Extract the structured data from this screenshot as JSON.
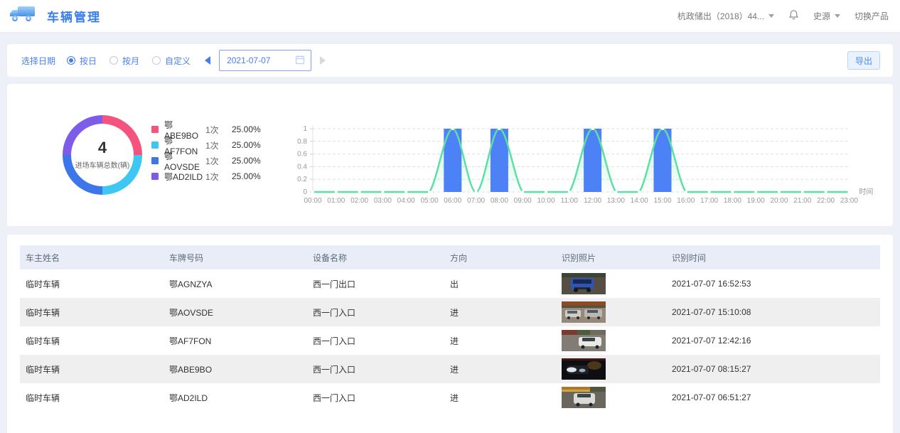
{
  "header": {
    "title": "车辆管理",
    "org_selector": "杭政储出（2018）44...",
    "user_name": "史源",
    "switch_product": "切换产品"
  },
  "filter": {
    "label": "选择日期",
    "modes": [
      {
        "label": "按日",
        "selected": true
      },
      {
        "label": "按月",
        "selected": false
      },
      {
        "label": "自定义",
        "selected": false
      }
    ],
    "date_value": "2021-07-07",
    "export_label": "导出"
  },
  "chart_data": [
    {
      "type": "pie",
      "subtype": "donut",
      "center_value": "4",
      "center_label": "进场车辆总数(辆)",
      "legend_position": "right",
      "slices": [
        {
          "label": "鄂ABE9BO",
          "count": 1,
          "count_label": "1次",
          "percent": 25.0,
          "percent_label": "25.00%",
          "color": "#f4537e"
        },
        {
          "label": "鄂AF7FON",
          "count": 1,
          "count_label": "1次",
          "percent": 25.0,
          "percent_label": "25.00%",
          "color": "#3fc7f3"
        },
        {
          "label": "鄂AOVSDE",
          "count": 1,
          "count_label": "1次",
          "percent": 25.0,
          "percent_label": "25.00%",
          "color": "#3d76e9"
        },
        {
          "label": "鄂AD2ILD",
          "count": 1,
          "count_label": "1次",
          "percent": 25.0,
          "percent_label": "25.00%",
          "color": "#7c5ce8"
        }
      ]
    },
    {
      "type": "line",
      "title": "",
      "x": [
        "00:00",
        "01:00",
        "02:00",
        "03:00",
        "04:00",
        "05:00",
        "06:00",
        "07:00",
        "08:00",
        "09:00",
        "10:00",
        "11:00",
        "12:00",
        "13:00",
        "14:00",
        "15:00",
        "16:00",
        "17:00",
        "18:00",
        "19:00",
        "20:00",
        "21:00",
        "22:00",
        "23:00"
      ],
      "values": [
        0,
        0,
        0,
        0,
        0,
        0,
        1,
        0,
        1,
        0,
        0,
        0,
        1,
        0,
        0,
        1,
        0,
        0,
        0,
        0,
        0,
        0,
        0,
        0
      ],
      "bars_at": [
        "06:00",
        "08:00",
        "12:00",
        "15:00"
      ],
      "ylim": [
        0,
        1
      ],
      "yticks": [
        "0",
        "0.2",
        "0.4",
        "0.6",
        "0.8",
        "1"
      ],
      "xlabel": "时间",
      "grid": "dashed",
      "line_color": "#5ce0a3",
      "bar_color": "#4d82f7",
      "smooth": true
    }
  ],
  "table": {
    "columns": [
      "车主姓名",
      "车牌号码",
      "设备名称",
      "方向",
      "识别照片",
      "识别时间"
    ],
    "rows": [
      {
        "owner": "临时车辆",
        "plate": "鄂AGNZYA",
        "device": "西一门出口",
        "direction": "出",
        "photo": "blue-truck",
        "time": "2021-07-07 16:52:53"
      },
      {
        "owner": "临时车辆",
        "plate": "鄂AOVSDE",
        "device": "西一门入口",
        "direction": "进",
        "photo": "gray-cars",
        "time": "2021-07-07 15:10:08"
      },
      {
        "owner": "临时车辆",
        "plate": "鄂AF7FON",
        "device": "西一门入口",
        "direction": "进",
        "photo": "white-car",
        "time": "2021-07-07 12:42:16"
      },
      {
        "owner": "临时车辆",
        "plate": "鄂ABE9BO",
        "device": "西一门入口",
        "direction": "进",
        "photo": "night-car",
        "time": "2021-07-07 08:15:27"
      },
      {
        "owner": "临时车辆",
        "plate": "鄂AD2ILD",
        "device": "西一门入口",
        "direction": "进",
        "photo": "silver-car",
        "time": "2021-07-07 06:51:27"
      }
    ]
  }
}
